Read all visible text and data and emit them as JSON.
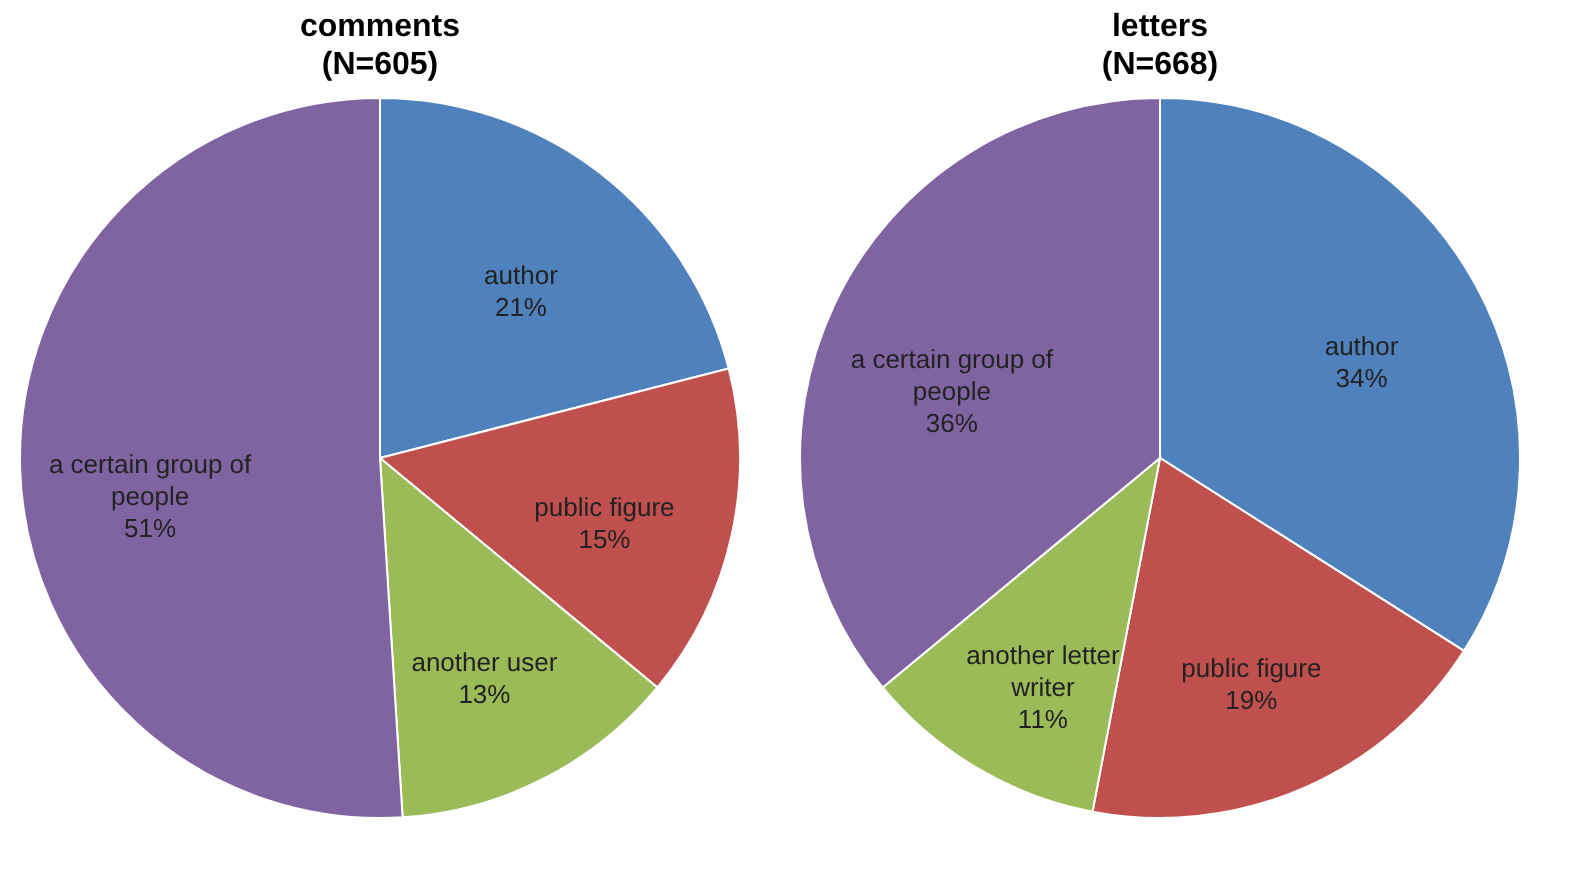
{
  "chart_data": [
    {
      "type": "pie",
      "title": "comments",
      "subtitle": "(N=605)",
      "categories": [
        "author",
        "public figure",
        "another user",
        "a certain group of people"
      ],
      "values": [
        21,
        15,
        13,
        51
      ],
      "value_labels": [
        "21%",
        "15%",
        "13%",
        "51%"
      ],
      "colors": [
        "#4f81bd",
        "#c0504d",
        "#9bbb59",
        "#8064a2"
      ]
    },
    {
      "type": "pie",
      "title": "letters",
      "subtitle": "(N=668)",
      "categories": [
        "author",
        "public figure",
        "another letter writer",
        "a certain group of people"
      ],
      "values": [
        34,
        19,
        11,
        36
      ],
      "value_labels": [
        "34%",
        "19%",
        "11%",
        "36%"
      ],
      "colors": [
        "#4f81bd",
        "#c0504d",
        "#9bbb59",
        "#8064a2"
      ]
    }
  ]
}
